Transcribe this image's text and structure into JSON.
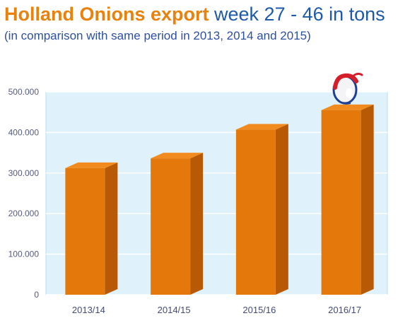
{
  "header": {
    "title_bold": "Holland Onions export",
    "title_rest": " week 27 - 46 in tons",
    "subtitle": "(in comparison with same period in  2013, 2014 and 2015)"
  },
  "colors": {
    "title_orange": "#e8820c",
    "title_blue": "#1e5aa8",
    "subtitle_blue": "#2d4fa0",
    "bar_front": "#e4780a",
    "bar_side": "#b85a05",
    "bar_top": "#f28b1f",
    "plot_bg": "#dff2fb",
    "plot_border": "#b9dff1"
  },
  "logo": {
    "icon": "onion-mascot-icon"
  },
  "chart_data": {
    "type": "bar",
    "categories": [
      "2013/14",
      "2014/15",
      "2015/16",
      "2016/17"
    ],
    "values": [
      312000,
      336000,
      407000,
      455000
    ],
    "yticks": [
      0,
      100000,
      200000,
      300000,
      400000,
      500000
    ],
    "ytick_labels": [
      "0",
      "100.000",
      "200.000",
      "300.000",
      "400.000",
      "500.000"
    ],
    "ylim": [
      0,
      500000
    ],
    "grid": true,
    "legend": "none",
    "style": "3d"
  }
}
